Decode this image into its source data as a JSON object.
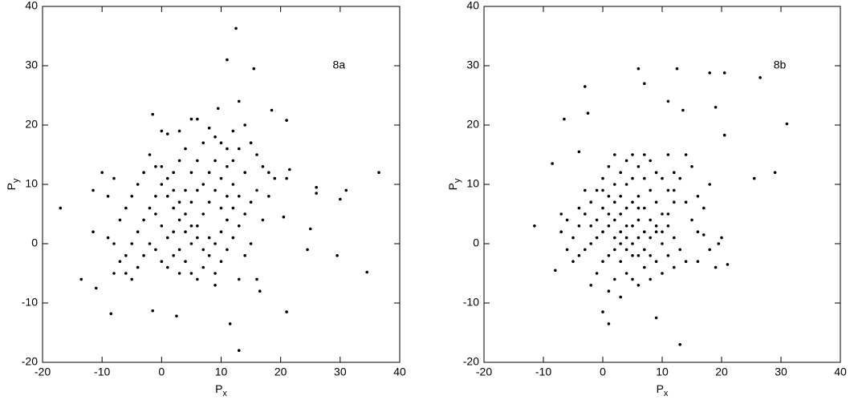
{
  "chart_data": [
    {
      "type": "scatter",
      "annotation": "8a",
      "xlabel": {
        "base": "P",
        "sub": "x"
      },
      "ylabel": {
        "base": "P",
        "sub": "y"
      },
      "xlim": [
        -20,
        40
      ],
      "ylim": [
        -20,
        40
      ],
      "xticks": [
        -20,
        -10,
        0,
        10,
        20,
        30,
        40
      ],
      "yticks": [
        -20,
        -10,
        0,
        10,
        20,
        30,
        40
      ],
      "color": "#000000",
      "x": [
        12.5,
        11,
        15.5,
        -17,
        -13.5,
        36.5,
        34.5,
        31,
        29.5,
        30,
        26,
        26,
        25,
        24.5,
        21,
        13,
        11.5,
        2.5,
        -1.5,
        -8.5,
        -11,
        -11.5,
        -11.5,
        -10,
        -1.5,
        13,
        9.5,
        18.5,
        21,
        21.5,
        21,
        20.5,
        16.5,
        0,
        1,
        3,
        5,
        6,
        7,
        8,
        9,
        10,
        11,
        12,
        14,
        15,
        16,
        17,
        18,
        19,
        16,
        15,
        14,
        13,
        12,
        11,
        10,
        9,
        8,
        7,
        6,
        5,
        4,
        3,
        2,
        1,
        0,
        -1,
        -2,
        -3,
        -4,
        -5,
        -6,
        -7,
        -8,
        -9,
        -7,
        -6,
        -5,
        -4,
        -3,
        -2,
        -1,
        0,
        1,
        2,
        3,
        4,
        5,
        6,
        7,
        8,
        9,
        10,
        11,
        12,
        13,
        14,
        12,
        11,
        10,
        9,
        8,
        7,
        6,
        5,
        4,
        3,
        2,
        1,
        0,
        -1,
        -2,
        -3,
        -4,
        -5,
        -6,
        -8,
        -9,
        -8,
        3,
        4,
        5,
        6,
        7,
        8,
        9,
        10,
        11,
        2,
        1,
        0,
        -1,
        3,
        6,
        5,
        4,
        2,
        14,
        15,
        16,
        13,
        17,
        18,
        12,
        13,
        9
      ],
      "y": [
        36.3,
        31,
        29.5,
        6,
        -6,
        12,
        -4.8,
        9,
        -2,
        7.5,
        9.5,
        8.5,
        2.5,
        -1,
        -11.5,
        -18,
        -13.5,
        -12.2,
        -11.3,
        -11.8,
        -7.5,
        2,
        9,
        12,
        21.8,
        24,
        22.8,
        22.5,
        20.8,
        12.5,
        11,
        4.5,
        -8,
        19,
        18.5,
        19,
        21,
        21,
        17,
        19.5,
        18,
        17,
        16,
        19,
        20,
        17,
        15,
        13,
        12,
        11,
        9,
        7,
        5,
        3,
        1,
        -1,
        -3,
        -5,
        -2,
        -4,
        -6,
        -5,
        -3,
        -1,
        -2,
        -4,
        -3,
        -1,
        0,
        -2,
        -4,
        -6,
        -5,
        -3,
        0,
        1,
        4,
        6,
        8,
        10,
        12,
        15,
        13,
        10,
        8,
        6,
        4,
        2,
        0,
        3,
        5,
        7,
        9,
        11,
        13,
        10,
        8,
        12,
        6,
        4,
        2,
        0,
        1,
        -1,
        1,
        3,
        5,
        7,
        9,
        11,
        13,
        8,
        6,
        4,
        2,
        0,
        -2,
        -5,
        8,
        11,
        14,
        16,
        12,
        14,
        10,
        12,
        14,
        6,
        8,
        2,
        1,
        3,
        5,
        -5,
        9,
        7,
        9,
        12,
        -2,
        0,
        -6,
        -6,
        4,
        8,
        14,
        16,
        -7
      ]
    },
    {
      "type": "scatter",
      "annotation": "8b",
      "xlabel": {
        "base": "P",
        "sub": "x"
      },
      "ylabel": {
        "base": "P",
        "sub": "y"
      },
      "xlim": [
        -20,
        40
      ],
      "ylim": [
        -20,
        40
      ],
      "xticks": [
        -20,
        -10,
        0,
        10,
        20,
        30,
        40
      ],
      "yticks": [
        -20,
        -10,
        0,
        10,
        20,
        30,
        40
      ],
      "color": "#000000",
      "x": [
        -11.5,
        -8.5,
        -8,
        -6.5,
        -3,
        -2.5,
        -4,
        0,
        1,
        6,
        7,
        12.5,
        18,
        20.5,
        26.5,
        29,
        31,
        25.5,
        20.5,
        19,
        11,
        13.5,
        13,
        9,
        21,
        19.5,
        17,
        0,
        1,
        2,
        3,
        4,
        5,
        6,
        7,
        8,
        9,
        10,
        11,
        12,
        13,
        14,
        10,
        11,
        12,
        9,
        8,
        7,
        2,
        1,
        0,
        -1,
        -2,
        -3,
        -4,
        -5,
        -6,
        -5,
        -4,
        -3,
        -2,
        -1,
        0,
        1,
        2,
        3,
        4,
        5,
        6,
        7,
        8,
        9,
        10,
        11,
        12,
        8,
        7,
        6,
        5,
        4,
        3,
        2,
        1,
        0,
        -1,
        -2,
        3,
        4,
        5,
        6,
        2,
        1,
        3,
        7,
        8,
        9,
        10,
        11,
        12,
        14,
        15,
        16,
        17,
        18,
        14,
        15,
        13,
        -1,
        -2,
        -3,
        -4,
        -6,
        -7,
        -7,
        5,
        6,
        4,
        3,
        2,
        6,
        7,
        4,
        5,
        3,
        4,
        5,
        6,
        2,
        1,
        0,
        8,
        9,
        10,
        16,
        18,
        20,
        19,
        16,
        12,
        11
      ],
      "y": [
        3,
        13.5,
        -4.5,
        21,
        26.5,
        22,
        15.5,
        -11.5,
        -13.5,
        29.5,
        27,
        29.5,
        28.8,
        28.8,
        28,
        12,
        20.2,
        11,
        18.3,
        23,
        24,
        22.5,
        -17,
        -12.5,
        -3.5,
        0,
        1.5,
        9,
        8,
        10,
        12,
        14,
        15,
        13,
        11,
        9,
        7,
        5,
        3,
        1,
        -1,
        -3,
        11,
        9,
        7,
        12,
        14,
        15,
        15,
        13,
        11,
        9,
        7,
        5,
        3,
        1,
        -1,
        -3,
        -2,
        -1,
        0,
        1,
        2,
        3,
        4,
        5,
        6,
        7,
        8,
        6,
        4,
        2,
        0,
        -2,
        -4,
        -6,
        -4,
        -2,
        0,
        1,
        2,
        -1,
        -2,
        -3,
        -5,
        -7,
        -3,
        -5,
        -6,
        -7,
        -6,
        -8,
        -9,
        -1,
        1,
        3,
        -5,
        5,
        9,
        7,
        4,
        2,
        6,
        10,
        15,
        13,
        11,
        4,
        3,
        9,
        6,
        4,
        5,
        2,
        3,
        4,
        3,
        0,
        1,
        1,
        2,
        -1,
        -2,
        8,
        10,
        11,
        6,
        7,
        5,
        6,
        -2,
        -3,
        2,
        -3,
        -1,
        1,
        -4,
        8,
        12,
        15
      ]
    }
  ]
}
